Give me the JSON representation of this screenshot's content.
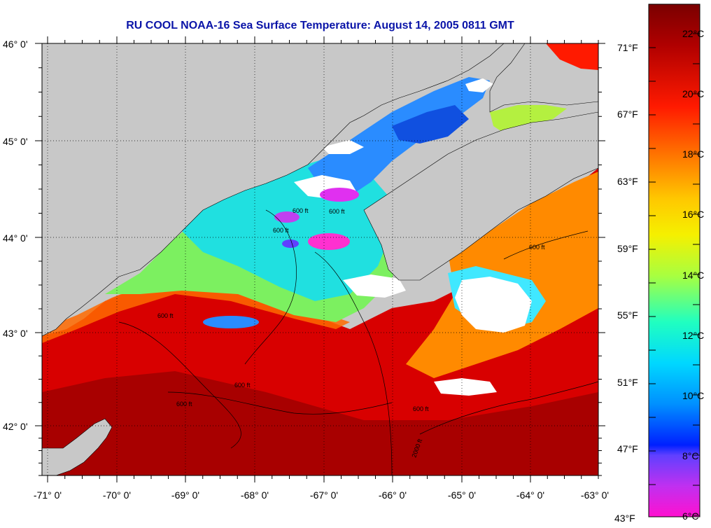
{
  "title": "RU COOL  NOAA-16  Sea Surface Temperature:  August 14, 2005 0811 GMT",
  "map": {
    "lon_labels": [
      "-71° 0'",
      "-70° 0'",
      "-69° 0'",
      "-68° 0'",
      "-67° 0'",
      "-66° 0'",
      "-65° 0'",
      "-64° 0'",
      "-63° 0'"
    ],
    "lat_labels": [
      "46° 0'",
      "45° 0'",
      "44° 0'",
      "43° 0'",
      "42° 0'"
    ],
    "contour_label": "600 ft",
    "contour_label_deep": "2000 ft",
    "colors": {
      "land": "#c8c8c8",
      "cloud": "#ffffff",
      "grid": "#000000"
    }
  },
  "colorbar": {
    "celsius_labels": [
      "22°C",
      "20°C",
      "18°C",
      "16°C",
      "14°C",
      "12°C",
      "10°C",
      "8°C",
      "6°C"
    ],
    "fahrenheit_labels": [
      "71°F",
      "67°F",
      "63°F",
      "59°F",
      "55°F",
      "51°F",
      "47°F",
      "43°F"
    ]
  }
}
